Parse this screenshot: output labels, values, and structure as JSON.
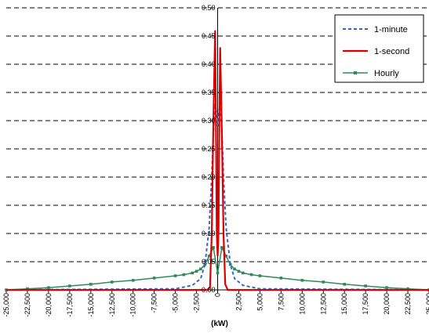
{
  "chart_data": {
    "type": "line",
    "title": "",
    "xlabel": "(kW)",
    "ylabel": "",
    "xlim": [
      -25000,
      25000
    ],
    "ylim": [
      0,
      0.5
    ],
    "grid": "horizontal dashed",
    "legend_position": "top-right",
    "y_ticks": [
      "0.00",
      "0.05",
      "0.10",
      "0.15",
      "0.20",
      "0.25",
      "0.30",
      "0.35",
      "0.40",
      "0.45",
      "0.50"
    ],
    "x_ticks": [
      "-25,000",
      "-22,500",
      "-20,000",
      "-17,500",
      "-15,000",
      "-12,500",
      "-10,000",
      "-7,500",
      "-5,000",
      "-2,500",
      "0",
      "2,500",
      "5,000",
      "7,500",
      "10,000",
      "12,500",
      "15,000",
      "17,500",
      "20,000",
      "22,500",
      "25,000"
    ],
    "series": [
      {
        "name": "1-minute",
        "color": "#3366cc",
        "style": "dashed",
        "x": [
          -25000,
          -5000,
          -3000,
          -2000,
          -1500,
          -1000,
          -700,
          -500,
          -300,
          -100,
          0,
          100,
          300,
          500,
          700,
          1000,
          1500,
          2000,
          3000,
          5000,
          25000
        ],
        "y": [
          0.0,
          0.002,
          0.008,
          0.02,
          0.045,
          0.11,
          0.2,
          0.28,
          0.33,
          0.31,
          0.29,
          0.31,
          0.33,
          0.28,
          0.2,
          0.11,
          0.045,
          0.02,
          0.008,
          0.002,
          0.0
        ]
      },
      {
        "name": "1-second",
        "color": "#dd0000",
        "style": "solid",
        "x": [
          -25000,
          -1200,
          -900,
          -700,
          -500,
          -300,
          -200,
          -100,
          0,
          100,
          200,
          300,
          500,
          700,
          900,
          1200,
          25000
        ],
        "y": [
          0.0,
          0.0,
          0.005,
          0.1,
          0.3,
          0.46,
          0.3,
          0.1,
          0.06,
          0.1,
          0.3,
          0.43,
          0.28,
          0.1,
          0.01,
          0.0,
          0.0
        ],
        "note_free": true
      },
      {
        "name": "Hourly",
        "color": "#2e8b57",
        "style": "solid-markers",
        "x": [
          -25000,
          -22500,
          -20000,
          -17500,
          -15000,
          -12500,
          -10000,
          -7500,
          -5000,
          -4000,
          -3000,
          -2500,
          -2000,
          -1500,
          -1000,
          -500,
          0,
          500,
          1000,
          1500,
          2000,
          2500,
          3000,
          4000,
          5000,
          7500,
          10000,
          12500,
          15000,
          17500,
          20000,
          22500,
          25000
        ],
        "y": [
          0.0,
          0.002,
          0.004,
          0.007,
          0.01,
          0.014,
          0.017,
          0.021,
          0.025,
          0.027,
          0.03,
          0.033,
          0.037,
          0.045,
          0.06,
          0.075,
          0.03,
          0.075,
          0.06,
          0.045,
          0.037,
          0.033,
          0.03,
          0.027,
          0.025,
          0.021,
          0.017,
          0.014,
          0.01,
          0.007,
          0.004,
          0.002,
          0.0
        ]
      }
    ]
  }
}
